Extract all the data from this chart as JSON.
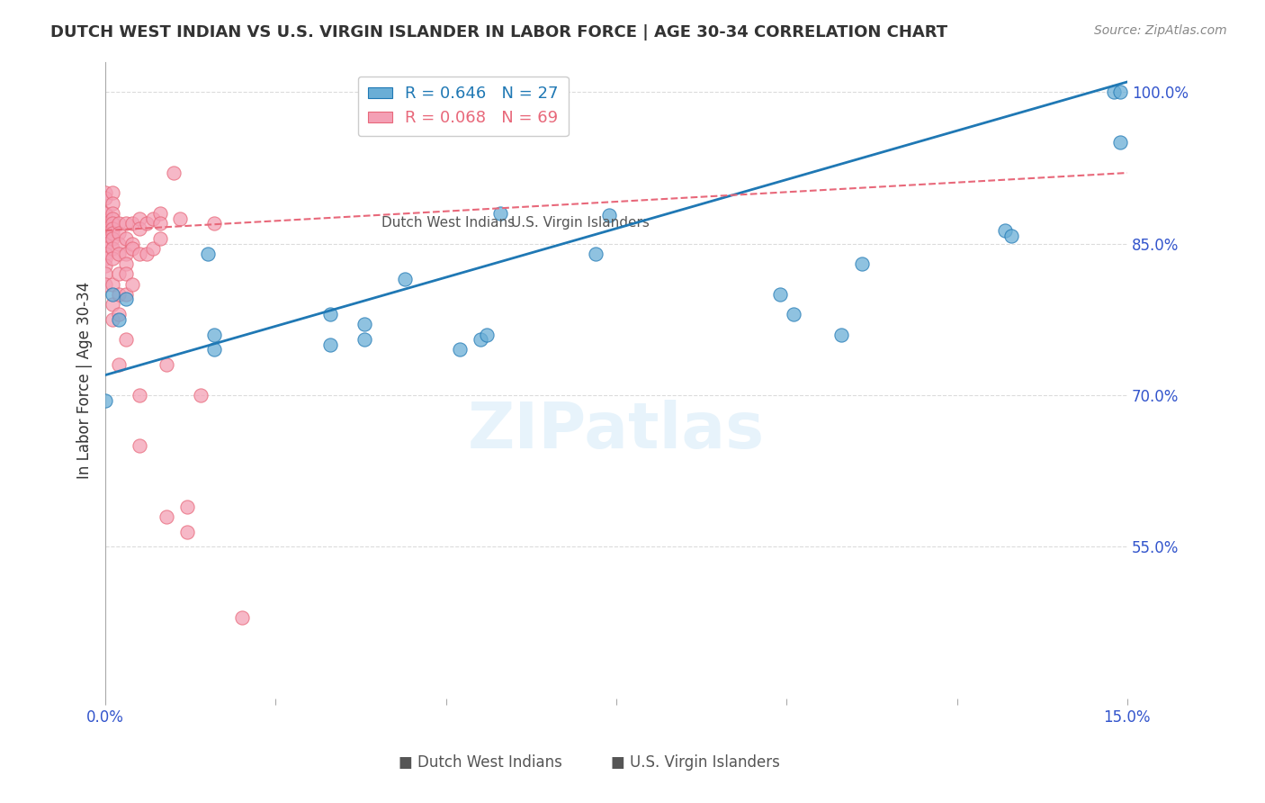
{
  "title": "DUTCH WEST INDIAN VS U.S. VIRGIN ISLANDER IN LABOR FORCE | AGE 30-34 CORRELATION CHART",
  "source": "Source: ZipAtlas.com",
  "xlabel_label": "",
  "ylabel_label": "In Labor Force | Age 30-34",
  "x_min": 0.0,
  "x_max": 0.15,
  "y_min": 0.4,
  "y_max": 1.03,
  "x_ticks": [
    0.0,
    0.025,
    0.05,
    0.075,
    0.1,
    0.125,
    0.15
  ],
  "x_tick_labels": [
    "0.0%",
    "",
    "",
    "",
    "",
    "",
    "15.0%"
  ],
  "y_ticks": [
    0.55,
    0.7,
    0.85,
    1.0
  ],
  "y_tick_labels": [
    "55.0%",
    "70.0%",
    "85.0%",
    "100.0%"
  ],
  "blue_R": 0.646,
  "blue_N": 27,
  "pink_R": 0.068,
  "pink_N": 69,
  "blue_scatter_x": [
    0.001,
    0.002,
    0.003,
    0.015,
    0.016,
    0.016,
    0.033,
    0.033,
    0.038,
    0.038,
    0.044,
    0.052,
    0.055,
    0.056,
    0.058,
    0.072,
    0.074,
    0.099,
    0.101,
    0.108,
    0.111,
    0.132,
    0.133,
    0.148,
    0.149,
    0.149,
    0.0
  ],
  "blue_scatter_y": [
    0.8,
    0.775,
    0.795,
    0.84,
    0.745,
    0.76,
    0.75,
    0.78,
    0.755,
    0.77,
    0.815,
    0.745,
    0.755,
    0.76,
    0.88,
    0.84,
    0.878,
    0.8,
    0.78,
    0.76,
    0.83,
    0.863,
    0.858,
    1.0,
    1.0,
    0.95,
    0.695
  ],
  "pink_scatter_x": [
    0.0,
    0.0,
    0.0,
    0.0,
    0.0,
    0.0,
    0.0,
    0.0,
    0.0,
    0.0,
    0.0,
    0.0,
    0.0,
    0.0,
    0.0,
    0.0,
    0.001,
    0.001,
    0.001,
    0.001,
    0.001,
    0.001,
    0.001,
    0.001,
    0.001,
    0.001,
    0.001,
    0.001,
    0.001,
    0.002,
    0.002,
    0.002,
    0.002,
    0.002,
    0.002,
    0.002,
    0.002,
    0.003,
    0.003,
    0.003,
    0.003,
    0.003,
    0.003,
    0.003,
    0.004,
    0.004,
    0.004,
    0.004,
    0.005,
    0.005,
    0.005,
    0.005,
    0.005,
    0.006,
    0.006,
    0.007,
    0.007,
    0.008,
    0.008,
    0.008,
    0.009,
    0.009,
    0.01,
    0.011,
    0.012,
    0.012,
    0.014,
    0.016,
    0.02
  ],
  "pink_scatter_y": [
    0.88,
    0.87,
    0.9,
    0.895,
    0.88,
    0.87,
    0.865,
    0.86,
    0.855,
    0.85,
    0.845,
    0.84,
    0.835,
    0.828,
    0.82,
    0.81,
    0.9,
    0.89,
    0.88,
    0.875,
    0.87,
    0.865,
    0.86,
    0.855,
    0.845,
    0.835,
    0.81,
    0.79,
    0.775,
    0.87,
    0.86,
    0.85,
    0.84,
    0.82,
    0.8,
    0.78,
    0.73,
    0.87,
    0.855,
    0.84,
    0.83,
    0.82,
    0.8,
    0.755,
    0.87,
    0.85,
    0.845,
    0.81,
    0.875,
    0.865,
    0.84,
    0.7,
    0.65,
    0.87,
    0.84,
    0.875,
    0.845,
    0.88,
    0.87,
    0.855,
    0.73,
    0.58,
    0.92,
    0.875,
    0.59,
    0.565,
    0.7,
    0.87,
    0.48
  ],
  "blue_line_x": [
    0.0,
    0.15
  ],
  "blue_line_y": [
    0.72,
    1.01
  ],
  "pink_line_x": [
    0.0,
    0.15
  ],
  "pink_line_y": [
    0.863,
    0.92
  ],
  "watermark": "ZIPatlas",
  "legend_blue_label": "Dutch West Indians",
  "legend_pink_label": "U.S. Virgin Islanders",
  "blue_color": "#6aaed6",
  "pink_color": "#f4a0b5",
  "blue_line_color": "#1f78b4",
  "pink_line_color": "#e8687a",
  "axis_color": "#3355cc",
  "grid_color": "#cccccc",
  "title_color": "#333333",
  "source_color": "#888888",
  "background_color": "#ffffff"
}
